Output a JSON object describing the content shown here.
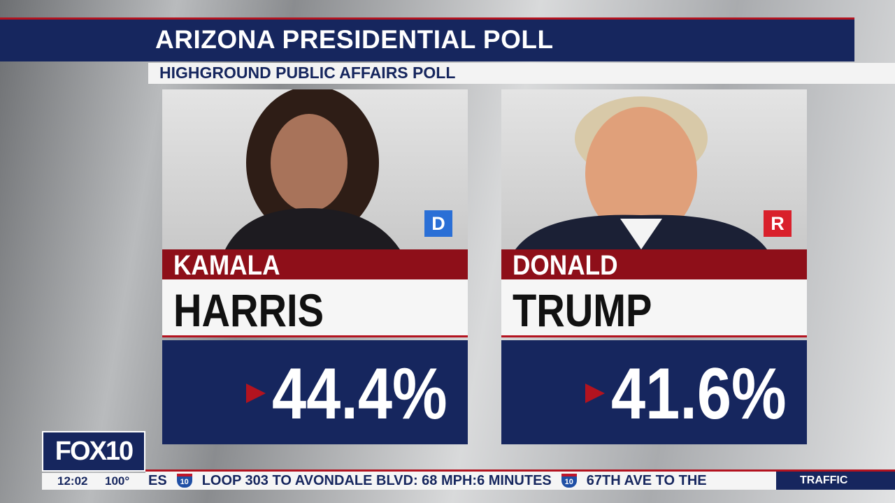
{
  "header": {
    "title": "ARIZONA PRESIDENTIAL POLL",
    "subtitle": "HIGHGROUND PUBLIC AFFAIRS POLL"
  },
  "candidates": [
    {
      "party": "D",
      "first_name": "KAMALA",
      "last_name": "HARRIS",
      "result": "44.4%"
    },
    {
      "party": "R",
      "first_name": "DONALD",
      "last_name": "TRUMP",
      "result": "41.6%"
    }
  ],
  "station": {
    "logo": "FOX10",
    "time": "12:02",
    "temperature": "100°"
  },
  "ticker": {
    "items": [
      "ES",
      "10",
      "LOOP 303 TO AVONDALE BLVD: 68 MPH:6 MINUTES",
      "10",
      "67TH AVE TO THE"
    ],
    "label": "TRAFFIC"
  }
}
